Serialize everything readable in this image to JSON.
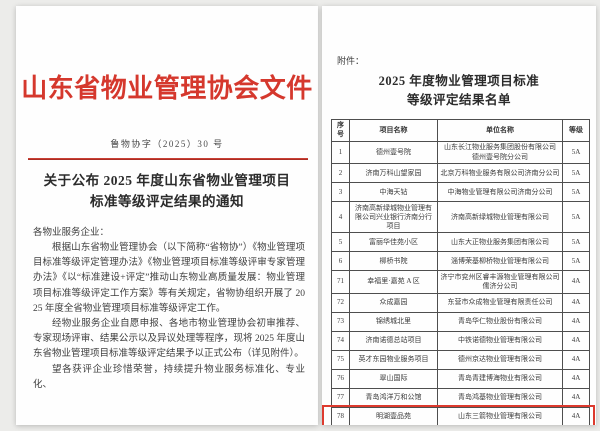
{
  "left_page": {
    "header": "山东省物业管理协会文件",
    "doc_number": "鲁物协字（2025）30 号",
    "title_line1": "关于公布 2025 年度山东省物业管理项目",
    "title_line2": "标准等级评定结果的通知",
    "salutation": "各物业服务企业：",
    "paragraph1": "根据山东省物业管理协会（以下简称“省物协”）《物业管理项目标准等级评定管理办法》《物业管理项目标准等级评审专家管理办法》《以“标准建设+评定”推动山东物业高质量发展：物业管理项目标准等级评定工作方案》等有关规定，省物协组织开展了 2025 年度全省物业管理项目标准等级评定工作。",
    "paragraph2": "经物业服务企业自愿申报、各地市物业管理协会初审推荐、专家现场评审、结果公示以及异议处理等程序，现将 2025 年度山东省物业管理项目标准等级评定结果予以正式公布（详见附件）。",
    "paragraph3": "望各获评企业珍惜荣誉，持续提升物业服务标准化、专业化、"
  },
  "right_page": {
    "attachment_label": "附件：",
    "title_line1": "2025 年度物业管理项目标准",
    "title_line2": "等级评定结果名单",
    "table": {
      "headers": [
        "序号",
        "项目名称",
        "单位名称",
        "等级"
      ],
      "rows": [
        {
          "no": "1",
          "project": "德州壹号院",
          "company": "山东长江物业服务集团股份有限公司\n德州壹号院分公司",
          "grade": "5A"
        },
        {
          "no": "2",
          "project": "济南万科山望家园",
          "company": "北京万科物业服务有限公司济南分公司",
          "grade": "5A"
        },
        {
          "no": "3",
          "project": "中海天钻",
          "company": "中海物业管理有限公司济南分公司",
          "grade": "5A"
        },
        {
          "no": "4",
          "project": "济南高新绿城物业管理有限公司兴业银行济南分行项目",
          "company": "济南高新绿城物业管理有限公司",
          "grade": "5A"
        },
        {
          "no": "5",
          "project": "富丽华佳苑小区",
          "company": "山东大正物业服务集团有限公司",
          "grade": "5A"
        },
        {
          "no": "6",
          "project": "柳桥书院",
          "company": "淄博荣基柳桥物业管理有限公司",
          "grade": "5A"
        },
        {
          "no": "71",
          "project": "幸福里·嘉苑 A 区",
          "company": "济宁市兖州区睿丰源物业管理有限公司\n儒济分公司",
          "grade": "4A"
        },
        {
          "no": "72",
          "project": "众成嘉园",
          "company": "东营市众成物业管理有限责任公司",
          "grade": "4A"
        },
        {
          "no": "73",
          "project": "锦绣城北里",
          "company": "青岛华仁物业股份有限公司",
          "grade": "4A"
        },
        {
          "no": "74",
          "project": "济南诺德总站项目",
          "company": "中铁诺德物业管理有限公司",
          "grade": "4A"
        },
        {
          "no": "75",
          "project": "英才东园物业服务项目",
          "company": "德州京达物业管理有限公司",
          "grade": "4A"
        },
        {
          "no": "76",
          "project": "翠山国际",
          "company": "青岛青建博海物业有限公司",
          "grade": "4A"
        },
        {
          "no": "77",
          "project": "青岛鸿洋万和公馆",
          "company": "青岛鸿基物业管理有限公司",
          "grade": "4A"
        },
        {
          "no": "78",
          "project": "明湖壹品苑",
          "company": "山东三箭物业管理有限公司",
          "grade": "4A"
        }
      ]
    }
  },
  "colors": {
    "header_red": "#d5382d",
    "highlight_red": "#dd3a2e"
  }
}
